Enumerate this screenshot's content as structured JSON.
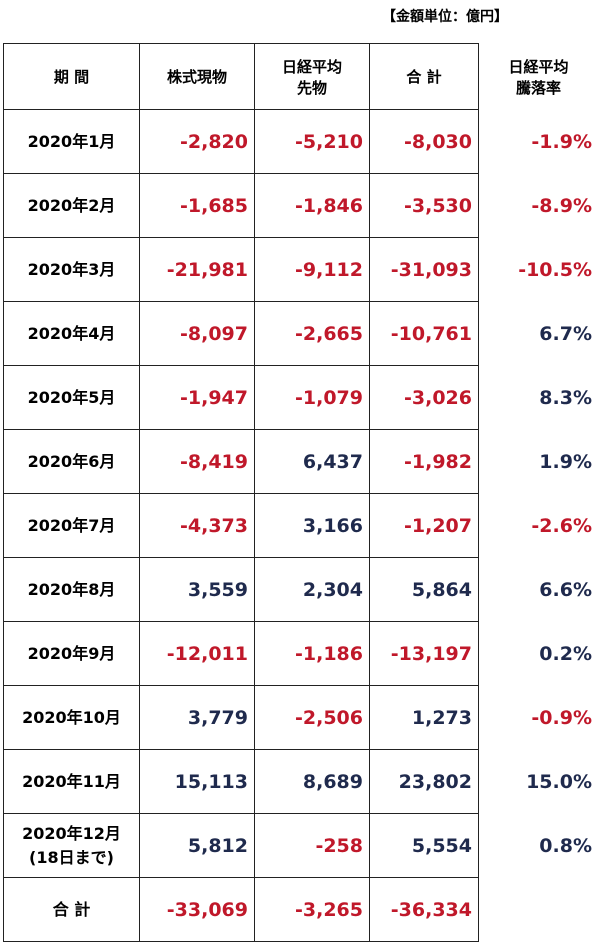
{
  "unit_note": "【金額単位：億円】",
  "table": {
    "header": [
      "期 間",
      "株式現物",
      "日経平均\n先物",
      "合 計",
      "日経平均\n騰落率"
    ],
    "rows": [
      [
        "2020年1月",
        "-2,820",
        "-5,210",
        "-8,030",
        "-1.9%"
      ],
      [
        "2020年2月",
        "-1,685",
        "-1,846",
        "-3,530",
        "-8.9%"
      ],
      [
        "2020年3月",
        "-21,981",
        "-9,112",
        "-31,093",
        "-10.5%"
      ],
      [
        "2020年4月",
        "-8,097",
        "-2,665",
        "-10,761",
        "6.7%"
      ],
      [
        "2020年5月",
        "-1,947",
        "-1,079",
        "-3,026",
        "8.3%"
      ],
      [
        "2020年6月",
        "-8,419",
        "6,437",
        "-1,982",
        "1.9%"
      ],
      [
        "2020年7月",
        "-4,373",
        "3,166",
        "-1,207",
        "-2.6%"
      ],
      [
        "2020年8月",
        "3,559",
        "2,304",
        "5,864",
        "6.6%"
      ],
      [
        "2020年9月",
        "-12,011",
        "-1,186",
        "-13,197",
        "0.2%"
      ],
      [
        "2020年10月",
        "3,779",
        "-2,506",
        "1,273",
        "-0.9%"
      ],
      [
        "2020年11月",
        "15,113",
        "8,689",
        "23,802",
        "15.0%"
      ],
      [
        "2020年12月\n(18日まで)",
        "5,812",
        "-258",
        "5,554",
        "0.8%"
      ],
      [
        "合 計",
        "-33,069",
        "-3,265",
        "-36,334"
      ]
    ]
  }
}
